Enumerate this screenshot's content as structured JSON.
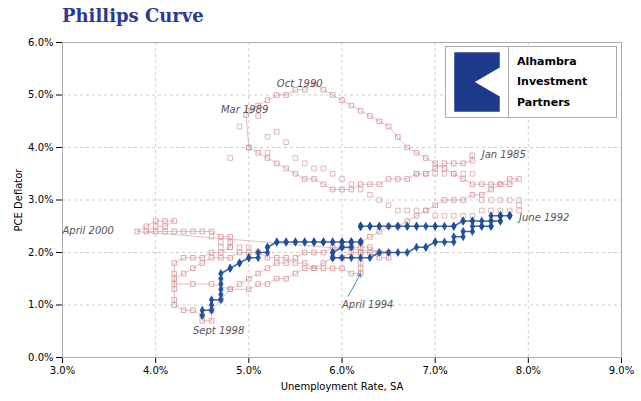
{
  "chart_data": {
    "type": "line",
    "title": "Phillips Curve",
    "xlabel": "Unemployment Rate, SA",
    "ylabel": "PCE Deflator",
    "xlim": [
      0.03,
      0.09
    ],
    "ylim": [
      0.0,
      0.06
    ],
    "xticks": [
      {
        "value": 0.03,
        "label": "3.0%"
      },
      {
        "value": 0.04,
        "label": "4.0%"
      },
      {
        "value": 0.05,
        "label": "5.0%"
      },
      {
        "value": 0.06,
        "label": "6.0%"
      },
      {
        "value": 0.07,
        "label": "7.0%"
      },
      {
        "value": 0.08,
        "label": "8.0%"
      },
      {
        "value": 0.09,
        "label": "9.0%"
      }
    ],
    "yticks": [
      {
        "value": 0.0,
        "label": "0.0%"
      },
      {
        "value": 0.01,
        "label": "1.0%"
      },
      {
        "value": 0.02,
        "label": "2.0%"
      },
      {
        "value": 0.03,
        "label": "3.0%"
      },
      {
        "value": 0.04,
        "label": "4.0%"
      },
      {
        "value": 0.05,
        "label": "5.0%"
      },
      {
        "value": 0.06,
        "label": "6.0%"
      }
    ],
    "grid": true,
    "series": [
      {
        "type": "line",
        "marker": "open_square",
        "color": "#d4959a",
        "x": [
          0.074,
          0.074,
          0.073,
          0.072,
          0.071,
          0.07,
          0.069,
          0.068,
          0.067,
          0.066,
          0.065,
          0.064,
          0.063,
          0.062,
          0.061,
          0.06,
          0.059,
          0.058,
          0.057,
          0.056,
          0.055,
          0.054,
          0.053,
          0.052,
          0.051,
          0.05,
          0.0497,
          0.05,
          0.051,
          0.052,
          0.053,
          0.054,
          0.055,
          0.056,
          0.057,
          0.058,
          0.059,
          0.06,
          0.061,
          0.062,
          0.063,
          0.064,
          0.065,
          0.066,
          0.067,
          0.068,
          0.069,
          0.07,
          0.071,
          0.072,
          0.073,
          0.074,
          0.075,
          0.076,
          0.077,
          0.078,
          0.079,
          0.078,
          0.077,
          0.076,
          0.075,
          0.074,
          0.073,
          0.072,
          0.071,
          0.07,
          0.069,
          0.068,
          0.067,
          0.066,
          0.065,
          0.064,
          0.063,
          0.062,
          0.062,
          0.062,
          0.062,
          0.062,
          0.061,
          0.06,
          0.059,
          0.058,
          0.057,
          0.056,
          0.055,
          0.054,
          0.053,
          0.052,
          0.051,
          0.05,
          0.049,
          0.048,
          0.047,
          0.046,
          0.045,
          0.044,
          0.043,
          0.042,
          0.042,
          0.042,
          0.042,
          0.043,
          0.044,
          0.045,
          0.045,
          0.046,
          0.046,
          0.047,
          0.048,
          0.049,
          0.05,
          0.051,
          0.052,
          0.053,
          0.054,
          0.055,
          0.056,
          0.057,
          0.058,
          0.059,
          0.06,
          0.061,
          0.062,
          0.063,
          0.064,
          0.065,
          0.038,
          0.039,
          0.04,
          0.041,
          0.042,
          0.041,
          0.04,
          0.039,
          0.04,
          0.041,
          0.042,
          0.043,
          0.044,
          0.045,
          0.046,
          0.047,
          0.048,
          0.048,
          0.048,
          0.047,
          0.046,
          0.045,
          0.044,
          0.043,
          0.042,
          0.042,
          0.042,
          0.044,
          0.046,
          0.048,
          0.05,
          0.051,
          0.052,
          0.053,
          0.054,
          0.055,
          0.056,
          0.057,
          0.058,
          0.059,
          0.06,
          0.061,
          0.062,
          0.063,
          0.064,
          0.065
        ],
        "values": [
          0.0385,
          0.0375,
          0.037,
          0.037,
          0.037,
          0.036,
          0.035,
          0.035,
          0.034,
          0.034,
          0.034,
          0.033,
          0.033,
          0.033,
          0.032,
          0.032,
          0.032,
          0.033,
          0.034,
          0.034,
          0.035,
          0.036,
          0.037,
          0.038,
          0.039,
          0.04,
          0.0462,
          0.047,
          0.048,
          0.049,
          0.05,
          0.05,
          0.051,
          0.051,
          0.052,
          0.051,
          0.05,
          0.049,
          0.048,
          0.047,
          0.046,
          0.045,
          0.044,
          0.042,
          0.04,
          0.039,
          0.038,
          0.037,
          0.036,
          0.035,
          0.034,
          0.033,
          0.033,
          0.033,
          0.033,
          0.033,
          0.034,
          0.034,
          0.033,
          0.032,
          0.031,
          0.031,
          0.03,
          0.03,
          0.03,
          0.029,
          0.028,
          0.027,
          0.026,
          0.025,
          0.025,
          0.024,
          0.023,
          0.022,
          0.02,
          0.018,
          0.017,
          0.016,
          0.016,
          0.017,
          0.017,
          0.017,
          0.017,
          0.018,
          0.018,
          0.019,
          0.019,
          0.019,
          0.02,
          0.02,
          0.02,
          0.019,
          0.019,
          0.019,
          0.018,
          0.017,
          0.016,
          0.015,
          0.013,
          0.011,
          0.01,
          0.009,
          0.009,
          0.008,
          0.007,
          0.007,
          0.009,
          0.011,
          0.013,
          0.014,
          0.015,
          0.016,
          0.017,
          0.018,
          0.018,
          0.019,
          0.02,
          0.02,
          0.02,
          0.021,
          0.021,
          0.021,
          0.021,
          0.021,
          0.02,
          0.02,
          0.024,
          0.025,
          0.026,
          0.026,
          0.026,
          0.025,
          0.025,
          0.024,
          0.024,
          0.024,
          0.024,
          0.024,
          0.024,
          0.024,
          0.024,
          0.023,
          0.023,
          0.022,
          0.021,
          0.02,
          0.02,
          0.019,
          0.019,
          0.019,
          0.018,
          0.016,
          0.014,
          0.014,
          0.014,
          0.013,
          0.013,
          0.014,
          0.014,
          0.015,
          0.015,
          0.016,
          0.017,
          0.017,
          0.018,
          0.019,
          0.019,
          0.02,
          0.02,
          0.02,
          0.019,
          0.019
        ]
      },
      {
        "type": "scatter",
        "marker": "open_square",
        "color": "#d4959a",
        "x": [
          0.048,
          0.05,
          0.052,
          0.049,
          0.051,
          0.053,
          0.054,
          0.052,
          0.055,
          0.056,
          0.057,
          0.058,
          0.059,
          0.06,
          0.061,
          0.062,
          0.063,
          0.064,
          0.065,
          0.066,
          0.067,
          0.068,
          0.069,
          0.07,
          0.071,
          0.072,
          0.073,
          0.074,
          0.075,
          0.076,
          0.077,
          0.078,
          0.079,
          0.079,
          0.079,
          0.078,
          0.077,
          0.076,
          0.075,
          0.074,
          0.073,
          0.072,
          0.071,
          0.07,
          0.069,
          0.068,
          0.046,
          0.047,
          0.047,
          0.048,
          0.049,
          0.05
        ],
        "values": [
          0.038,
          0.04,
          0.042,
          0.044,
          0.046,
          0.043,
          0.041,
          0.039,
          0.038,
          0.037,
          0.036,
          0.036,
          0.035,
          0.034,
          0.033,
          0.032,
          0.031,
          0.03,
          0.029,
          0.028,
          0.028,
          0.028,
          0.028,
          0.027,
          0.027,
          0.027,
          0.027,
          0.027,
          0.028,
          0.028,
          0.028,
          0.028,
          0.028,
          0.029,
          0.03,
          0.03,
          0.03,
          0.03,
          0.03,
          0.035,
          0.035,
          0.035,
          0.035,
          0.035,
          0.035,
          0.035,
          0.023,
          0.022,
          0.021,
          0.021,
          0.021,
          0.021
        ]
      },
      {
        "type": "line",
        "marker": "diamond",
        "color": "#1f4e9c",
        "x": [
          0.045,
          0.045,
          0.046,
          0.046,
          0.046,
          0.047,
          0.047,
          0.047,
          0.047,
          0.047,
          0.047,
          0.048,
          0.048,
          0.049,
          0.049,
          0.05,
          0.05,
          0.051,
          0.051,
          0.052,
          0.052,
          0.052,
          0.053,
          0.053,
          0.054,
          0.054,
          0.055,
          0.055,
          0.056,
          0.056,
          0.057,
          0.057,
          0.057,
          0.058,
          0.058,
          0.058,
          0.059,
          0.059,
          0.06,
          0.06,
          0.06,
          0.061,
          0.061,
          0.061,
          0.062,
          0.062,
          0.062,
          0.062,
          0.062,
          0.061,
          0.061,
          0.06,
          0.06,
          0.059,
          0.059,
          0.059,
          0.059,
          0.059,
          0.06,
          0.061,
          0.062,
          0.063,
          0.064,
          0.065,
          0.066,
          0.067,
          0.068,
          0.069,
          0.069,
          0.07,
          0.07,
          0.071,
          0.072,
          0.072,
          0.073,
          0.073,
          0.074,
          0.074,
          0.075,
          0.075,
          0.076,
          0.076,
          0.076,
          0.077,
          0.077,
          0.077,
          0.078,
          0.078,
          0.078,
          0.078,
          0.078,
          0.077,
          0.077,
          0.077,
          0.076,
          0.076,
          0.075,
          0.074,
          0.074,
          0.073,
          0.073,
          0.072,
          0.072,
          0.071,
          0.07,
          0.07,
          0.069,
          0.068,
          0.068,
          0.067,
          0.067,
          0.066,
          0.066,
          0.065,
          0.064,
          0.064,
          0.063,
          0.063,
          0.062,
          0.062,
          0.062,
          0.062,
          0.062
        ],
        "values": [
          0.008,
          0.009,
          0.009,
          0.01,
          0.011,
          0.011,
          0.012,
          0.013,
          0.014,
          0.015,
          0.016,
          0.017,
          0.017,
          0.018,
          0.018,
          0.019,
          0.019,
          0.019,
          0.02,
          0.02,
          0.021,
          0.021,
          0.022,
          0.022,
          0.022,
          0.022,
          0.022,
          0.022,
          0.022,
          0.022,
          0.022,
          0.022,
          0.022,
          0.022,
          0.022,
          0.022,
          0.022,
          0.022,
          0.022,
          0.022,
          0.022,
          0.022,
          0.022,
          0.022,
          0.022,
          0.022,
          0.022,
          0.022,
          0.022,
          0.022,
          0.021,
          0.021,
          0.021,
          0.02,
          0.02,
          0.02,
          0.019,
          0.019,
          0.019,
          0.019,
          0.019,
          0.019,
          0.02,
          0.02,
          0.02,
          0.02,
          0.021,
          0.021,
          0.021,
          0.022,
          0.022,
          0.022,
          0.022,
          0.023,
          0.023,
          0.024,
          0.024,
          0.025,
          0.025,
          0.025,
          0.025,
          0.025,
          0.026,
          0.026,
          0.026,
          0.027,
          0.027,
          0.027,
          0.027,
          0.027,
          0.027,
          0.027,
          0.027,
          0.027,
          0.027,
          0.026,
          0.026,
          0.026,
          0.026,
          0.026,
          0.026,
          0.025,
          0.025,
          0.025,
          0.025,
          0.025,
          0.025,
          0.025,
          0.025,
          0.025,
          0.025,
          0.025,
          0.025,
          0.025,
          0.025,
          0.025,
          0.025,
          0.025,
          0.025,
          0.025,
          0.025,
          0.025,
          0.025
        ]
      }
    ],
    "annotations": [
      {
        "text": "Mar 1989",
        "x": 0.047,
        "y": 0.0465
      },
      {
        "text": "Oct 1990",
        "x": 0.053,
        "y": 0.0515
      },
      {
        "text": "Jan 1985",
        "x": 0.075,
        "y": 0.038
      },
      {
        "text": "April 2000",
        "x": 0.03,
        "y": 0.0235
      },
      {
        "text": "Sept 1998",
        "x": 0.044,
        "y": 0.0045
      },
      {
        "text": "April 1994",
        "x": 0.06,
        "y": 0.0095,
        "arrow_to": [
          0.062,
          0.016
        ]
      },
      {
        "text": "June 1992",
        "x": 0.079,
        "y": 0.026
      }
    ],
    "logo": [
      "Alhambra",
      "Investment",
      "Partners"
    ]
  }
}
